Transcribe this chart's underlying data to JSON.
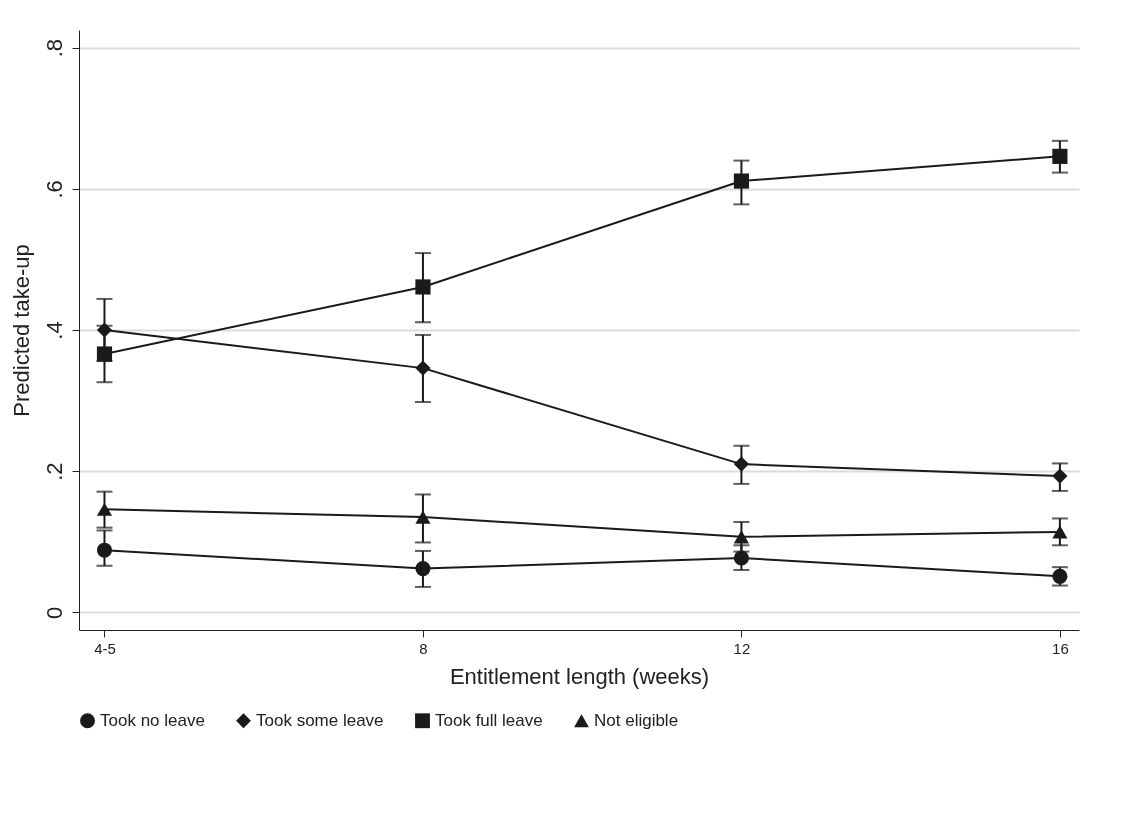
{
  "chart_data": {
    "type": "line",
    "xlabel": "Entitlement length (weeks)",
    "ylabel": "Predicted take-up",
    "categories": [
      "4-5",
      "8",
      "12",
      "16"
    ],
    "ylim": [
      -0.025,
      0.825
    ],
    "yticks": [
      {
        "value": 0,
        "label": "0"
      },
      {
        "value": 0.2,
        "label": ".2"
      },
      {
        "value": 0.4,
        "label": ".4"
      },
      {
        "value": 0.6,
        "label": ".6"
      },
      {
        "value": 0.8,
        "label": ".8"
      }
    ],
    "grid": "y",
    "legend": "bottom",
    "line_style": "solid",
    "series": [
      {
        "name": "Took no leave",
        "color": "#1a1a1a",
        "marker": "circle",
        "values": [
          0.088,
          0.062,
          0.077,
          0.051
        ],
        "errors": [
          [
            0.066,
            0.116
          ],
          [
            0.036,
            0.087
          ],
          [
            0.06,
            0.095
          ],
          [
            0.038,
            0.064
          ]
        ]
      },
      {
        "name": "Took some leave",
        "color": "#1a1a1a",
        "marker": "diamond",
        "values": [
          0.4,
          0.346,
          0.21,
          0.193
        ],
        "errors": [
          [
            0.356,
            0.444
          ],
          [
            0.298,
            0.393
          ],
          [
            0.182,
            0.236
          ],
          [
            0.172,
            0.211
          ]
        ]
      },
      {
        "name": "Took full leave",
        "color": "#1a1a1a",
        "marker": "square",
        "values": [
          0.366,
          0.461,
          0.611,
          0.646
        ],
        "errors": [
          [
            0.326,
            0.406
          ],
          [
            0.411,
            0.509
          ],
          [
            0.578,
            0.64
          ],
          [
            0.623,
            0.668
          ]
        ]
      },
      {
        "name": "Not eligible",
        "color": "#1a1a1a",
        "marker": "triangle",
        "values": [
          0.146,
          0.135,
          0.107,
          0.114
        ],
        "errors": [
          [
            0.12,
            0.171
          ],
          [
            0.099,
            0.167
          ],
          [
            0.086,
            0.128
          ],
          [
            0.095,
            0.133
          ]
        ]
      }
    ]
  }
}
